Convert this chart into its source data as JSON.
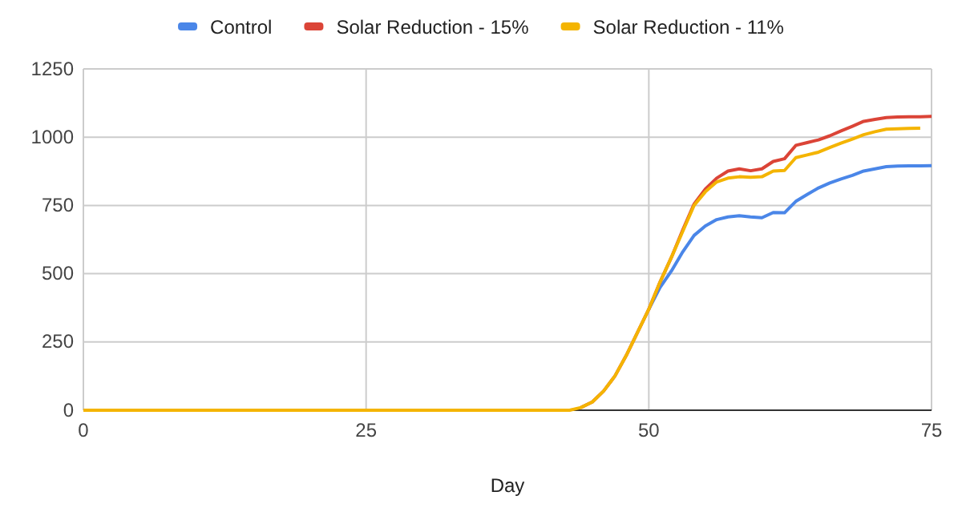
{
  "chart_data": {
    "type": "line",
    "xlabel": "Day",
    "xlim": [
      0,
      75
    ],
    "xticks": [
      0,
      25,
      50,
      75
    ],
    "ylim": [
      0,
      1250
    ],
    "yticks": [
      0,
      250,
      500,
      750,
      1000,
      1250
    ],
    "grid": true,
    "legend": "top",
    "marker": "none",
    "line_style": "solid",
    "series": [
      {
        "name": "Control",
        "color": "#4a86e8",
        "x": [
          50,
          51,
          52,
          53,
          54,
          55,
          56,
          57,
          58,
          59,
          60,
          61,
          62,
          63,
          64,
          65,
          66,
          67,
          68,
          69,
          70,
          71,
          72,
          73,
          74,
          75
        ],
        "values": [
          370,
          450,
          510,
          580,
          640,
          675,
          698,
          708,
          712,
          708,
          705,
          724,
          723,
          765,
          790,
          814,
          832,
          847,
          860,
          876,
          884,
          892,
          894,
          895,
          895,
          896
        ]
      },
      {
        "name": "Solar Reduction - 15%",
        "color": "#db4437",
        "x": [
          44,
          45,
          46,
          47,
          48,
          49,
          50,
          51,
          52,
          53,
          54,
          55,
          56,
          57,
          58,
          59,
          60,
          61,
          62,
          63,
          64,
          65,
          66,
          67,
          68,
          69,
          70,
          71,
          72,
          73,
          74,
          75
        ],
        "values": [
          10,
          30,
          70,
          125,
          200,
          285,
          370,
          470,
          560,
          660,
          755,
          810,
          850,
          876,
          884,
          877,
          884,
          911,
          921,
          970,
          980,
          990,
          1005,
          1023,
          1040,
          1058,
          1065,
          1072,
          1074,
          1075,
          1075,
          1076
        ]
      },
      {
        "name": "Solar Reduction - 11%",
        "color": "#f4b400",
        "x": [
          0,
          43,
          44,
          45,
          46,
          47,
          48,
          49,
          50,
          51,
          52,
          53,
          54,
          55,
          56,
          57,
          58,
          59,
          60,
          61,
          62,
          63,
          64,
          65,
          66,
          67,
          68,
          69,
          70,
          71,
          72,
          73,
          74
        ],
        "values": [
          0,
          0,
          10,
          30,
          70,
          125,
          200,
          285,
          370,
          470,
          560,
          655,
          750,
          800,
          836,
          850,
          855,
          853,
          855,
          876,
          878,
          925,
          935,
          945,
          962,
          978,
          993,
          1009,
          1020,
          1029,
          1031,
          1032,
          1033
        ]
      }
    ]
  }
}
